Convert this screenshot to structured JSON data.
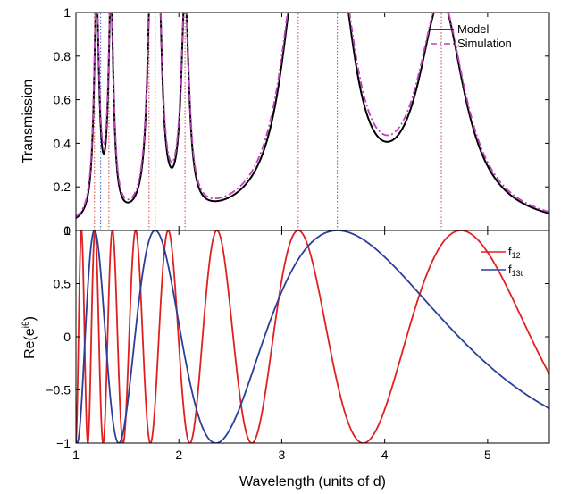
{
  "chart_data": [
    {
      "type": "line",
      "ylabel": "Transmission",
      "xlim": [
        1,
        5.6
      ],
      "ylim": [
        0,
        1
      ],
      "yticks": [
        0,
        0.2,
        0.4,
        0.6,
        0.8,
        1
      ],
      "ytick_labels": [
        "0",
        "0.2",
        "0.4",
        "0.6",
        "0.8",
        "1"
      ],
      "legend_position": "top-right",
      "grid": false,
      "series": [
        {
          "name": "Model",
          "color": "#000000",
          "style": "solid",
          "peaks": [
            {
              "x": 1.2,
              "width": 0.03
            },
            {
              "x": 1.34,
              "width": 0.03
            },
            {
              "x": 1.73,
              "width": 0.04
            },
            {
              "x": 1.8,
              "width": 0.04
            },
            {
              "x": 2.06,
              "width": 0.045
            },
            {
              "x": 3.16,
              "width": 0.2
            },
            {
              "x": 3.54,
              "width": 0.2
            },
            {
              "x": 4.55,
              "width": 0.27
            }
          ]
        },
        {
          "name": "Simulation",
          "color": "#bf40bf",
          "style": "dashdot",
          "peaks": [
            {
              "x": 1.2,
              "width": 0.032
            },
            {
              "x": 1.34,
              "width": 0.032
            },
            {
              "x": 1.73,
              "width": 0.042
            },
            {
              "x": 1.8,
              "width": 0.042
            },
            {
              "x": 2.06,
              "width": 0.047
            },
            {
              "x": 3.16,
              "width": 0.21
            },
            {
              "x": 3.54,
              "width": 0.21
            },
            {
              "x": 4.55,
              "width": 0.28
            }
          ]
        }
      ],
      "resonance_markers": [
        {
          "x": 1.18,
          "color": "#d04040"
        },
        {
          "x": 1.24,
          "color": "#4060c0"
        },
        {
          "x": 1.32,
          "color": "#d04040"
        },
        {
          "x": 1.71,
          "color": "#d04040"
        },
        {
          "x": 1.77,
          "color": "#4060c0"
        },
        {
          "x": 2.06,
          "color": "#d04040"
        },
        {
          "x": 3.16,
          "color": "#d04040"
        },
        {
          "x": 3.54,
          "color": "#4060c0"
        },
        {
          "x": 4.55,
          "color": "#d04040"
        }
      ]
    },
    {
      "type": "line",
      "xlabel": "Wavelength (units of d)",
      "ylabel": "Re(e^{iθ})",
      "xlim": [
        1,
        5.6
      ],
      "ylim": [
        -1,
        1
      ],
      "xticks": [
        1,
        2,
        3,
        4,
        5
      ],
      "xtick_labels": [
        "1",
        "2",
        "3",
        "4",
        "5"
      ],
      "yticks": [
        -1,
        -0.5,
        0,
        0.5,
        1
      ],
      "ytick_labels": [
        "−1",
        "−0.5",
        "0",
        "0.5",
        "1"
      ],
      "legend_position": "top-right",
      "grid": false,
      "series": [
        {
          "name": "f12",
          "legend_base": "f",
          "legend_sub": "12",
          "color": "#e02020",
          "formula": "cos(2*pi*A/x)",
          "A": 9.48
        },
        {
          "name": "f13t",
          "legend_base": "f",
          "legend_sub": "13t",
          "color": "#2a3f9a",
          "formula": "cos(2*pi*A/x)",
          "A": 3.54
        }
      ]
    }
  ]
}
